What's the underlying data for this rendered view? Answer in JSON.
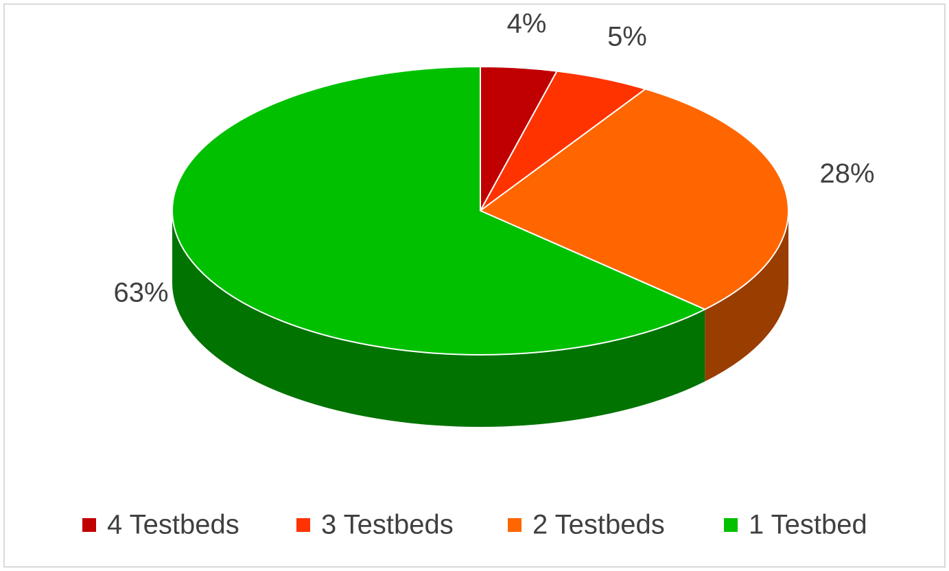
{
  "chart_data": {
    "type": "pie3d",
    "categories": [
      "4 Testbeds",
      "3 Testbeds",
      "2 Testbeds",
      "1 Testbed"
    ],
    "values": [
      4,
      5,
      28,
      63
    ],
    "value_labels": [
      "4%",
      "5%",
      "28%",
      "63%"
    ],
    "colors": [
      "#c00000",
      "#ff3300",
      "#ff6600",
      "#00c000"
    ],
    "legend": "bottom"
  }
}
